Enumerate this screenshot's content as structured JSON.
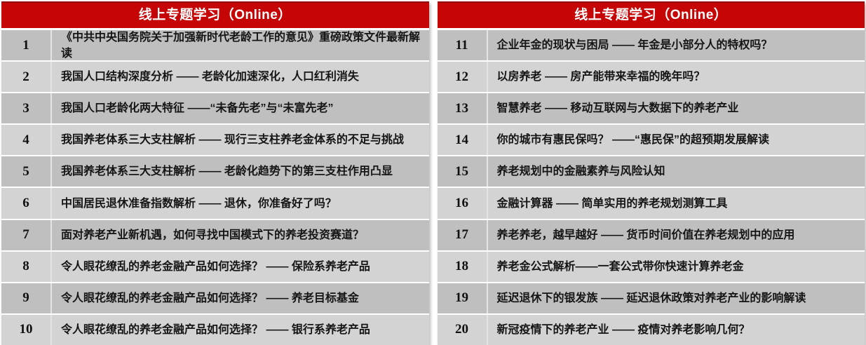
{
  "colors": {
    "header_bg": "#c60606",
    "header_top_edge": "#8f0e10",
    "header_text": "#ffffff",
    "row_dark": "#bfbfbf",
    "row_light": "#d3d3d3",
    "body_text": "#151515"
  },
  "left_table": {
    "header": "线上专题学习（Online）",
    "rows": [
      {
        "num": "1",
        "text": "《中共中央国务院关于加强新时代老龄工作的意见》重磅政策文件最新解读"
      },
      {
        "num": "2",
        "text": "我国人口结构深度分析 —— 老龄化加速深化，人口红利消失"
      },
      {
        "num": "3",
        "text": "我国人口老龄化两大特征 ——“未备先老”与“未富先老”"
      },
      {
        "num": "4",
        "text": "我国养老体系三大支柱解析 —— 现行三支柱养老金体系的不足与挑战"
      },
      {
        "num": "5",
        "text": "我国养老体系三大支柱解析 —— 老龄化趋势下的第三支柱作用凸显"
      },
      {
        "num": "6",
        "text": "中国居民退休准备指数解析 —— 退休，你准备好了吗？"
      },
      {
        "num": "7",
        "text": "面对养老产业新机遇，如何寻找中国模式下的养老投资赛道？"
      },
      {
        "num": "8",
        "text": "令人眼花缭乱的养老金融产品如何选择？ —— 保险系养老产品"
      },
      {
        "num": "9",
        "text": "令人眼花缭乱的养老金融产品如何选择？ —— 养老目标基金"
      },
      {
        "num": "10",
        "text": "令人眼花缭乱的养老金融产品如何选择？ —— 银行系养老产品"
      }
    ]
  },
  "right_table": {
    "header": "线上专题学习（Online）",
    "rows": [
      {
        "num": "11",
        "text": "企业年金的现状与困局 —— 年金是小部分人的特权吗？"
      },
      {
        "num": "12",
        "text": "以房养老 —— 房产能带来幸福的晚年吗？"
      },
      {
        "num": "13",
        "text": "智慧养老 —— 移动互联网与大数据下的养老产业"
      },
      {
        "num": "14",
        "text": "你的城市有惠民保吗？ ——“惠民保”的超预期发展解读"
      },
      {
        "num": "15",
        "text": "养老规划中的金融素养与风险认知"
      },
      {
        "num": "16",
        "text": "金融计算器 —— 简单实用的养老规划测算工具"
      },
      {
        "num": "17",
        "text": "养老养老，越早越好 —— 货币时间价值在养老规划中的应用"
      },
      {
        "num": "18",
        "text": "养老金公式解析——一套公式带你快速计算养老金"
      },
      {
        "num": "19",
        "text": "延迟退休下的银发族 —— 延迟退休政策对养老产业的影响解读"
      },
      {
        "num": "20",
        "text": "新冠疫情下的养老产业 —— 疫情对养老影响几何？"
      }
    ]
  }
}
